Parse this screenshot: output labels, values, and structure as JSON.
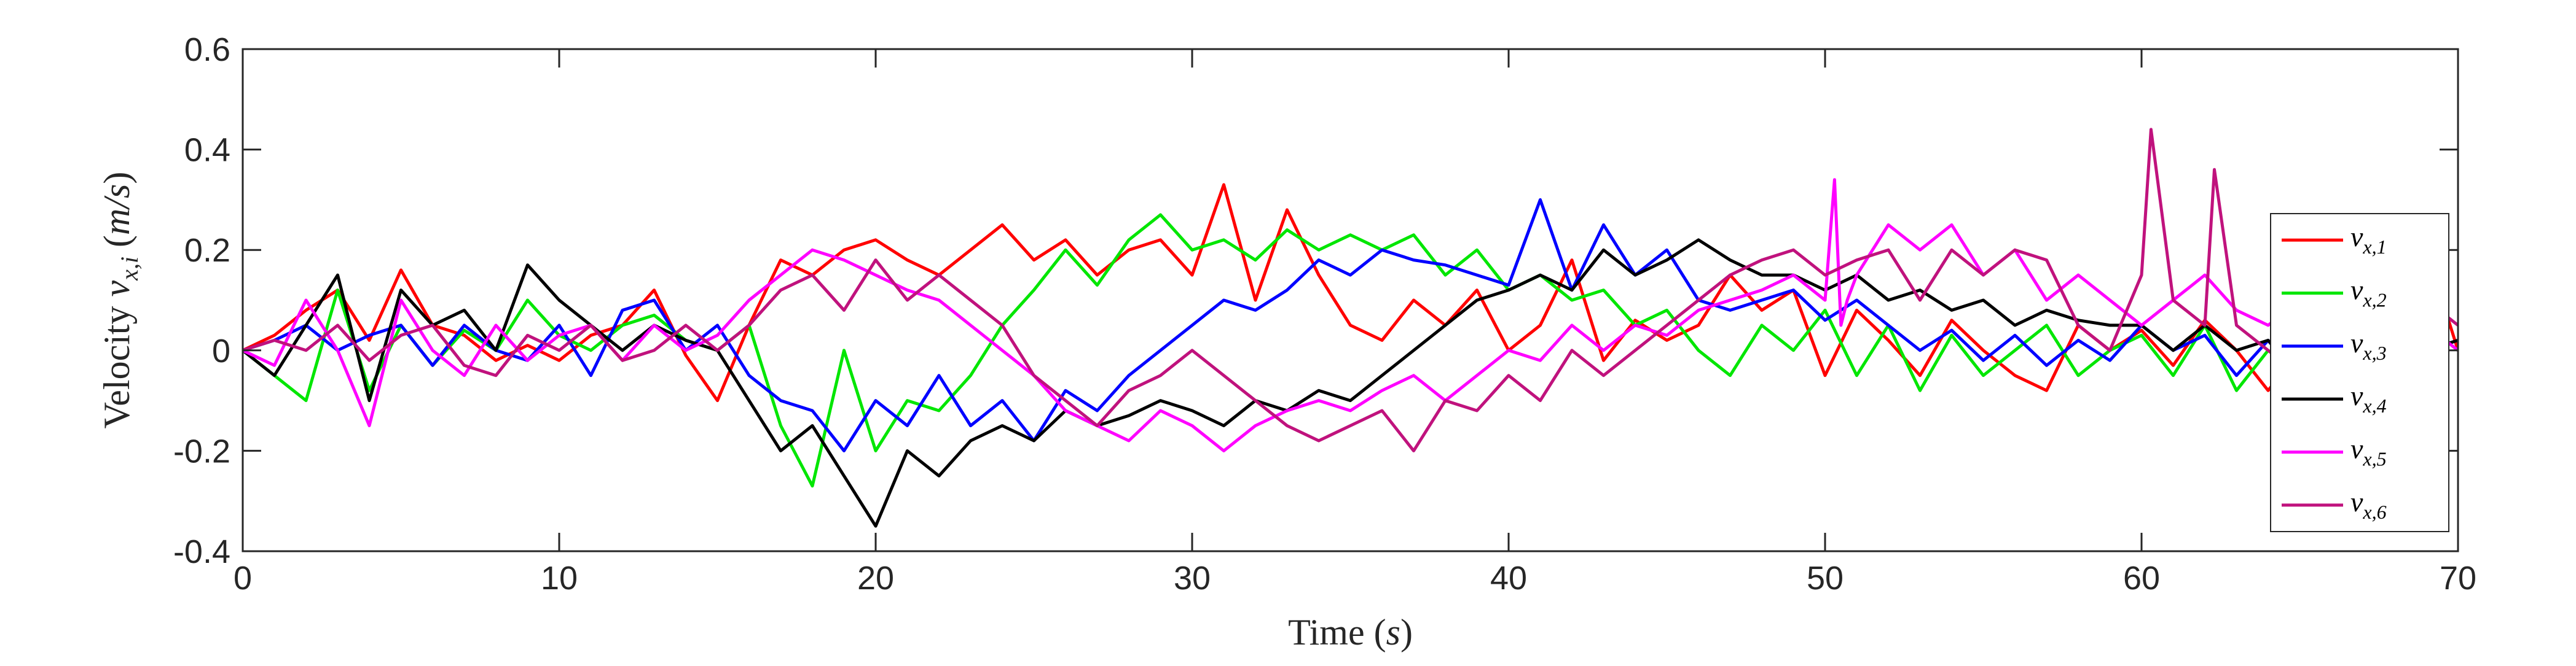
{
  "chart_data": {
    "type": "line",
    "xlabel": "Time (s)",
    "ylabel": "Velocity v_x,i (m/s)",
    "xlim": [
      0,
      70
    ],
    "ylim": [
      -0.4,
      0.6
    ],
    "xticks": [
      0,
      10,
      20,
      30,
      40,
      50,
      60,
      70
    ],
    "yticks": [
      -0.4,
      -0.2,
      0,
      0.2,
      0.4,
      0.6
    ],
    "xtick_labels": [
      "0",
      "10",
      "20",
      "30",
      "40",
      "50",
      "60",
      "70"
    ],
    "ytick_labels": [
      "-0.4",
      "-0.2",
      "0",
      "0.2",
      "0.4",
      "0.6"
    ],
    "grid": false,
    "legend_position": "right",
    "series": [
      {
        "name": "v_x,1",
        "legend_main": "v",
        "legend_sub": "x,1",
        "color": "#ff0000",
        "x": [
          0,
          1,
          2,
          3,
          4,
          5,
          6,
          7,
          8,
          9,
          10,
          11,
          12,
          13,
          14,
          15,
          16,
          17,
          18,
          19,
          20,
          21,
          22,
          23,
          24,
          25,
          26,
          27,
          28,
          29,
          30,
          31,
          32,
          33,
          34,
          35,
          36,
          37,
          38,
          39,
          40,
          41,
          42,
          43,
          44,
          45,
          46,
          47,
          48,
          49,
          50,
          51,
          52,
          53,
          54,
          55,
          56,
          57,
          58,
          59,
          60,
          61,
          62,
          63,
          64,
          65,
          66,
          67,
          68,
          69,
          70
        ],
        "y": [
          0.0,
          0.03,
          0.08,
          0.12,
          0.02,
          0.16,
          0.05,
          0.03,
          -0.02,
          0.01,
          -0.02,
          0.03,
          0.05,
          0.12,
          -0.01,
          -0.1,
          0.05,
          0.18,
          0.15,
          0.2,
          0.22,
          0.18,
          0.15,
          0.2,
          0.25,
          0.18,
          0.22,
          0.15,
          0.2,
          0.22,
          0.15,
          0.33,
          0.1,
          0.28,
          0.15,
          0.05,
          0.02,
          0.1,
          0.05,
          0.12,
          0.0,
          0.05,
          0.18,
          -0.02,
          0.06,
          0.02,
          0.05,
          0.15,
          0.08,
          0.12,
          -0.05,
          0.08,
          0.02,
          -0.05,
          0.06,
          0.0,
          -0.05,
          -0.08,
          0.05,
          0.0,
          0.04,
          -0.03,
          0.06,
          0.0,
          -0.08,
          0.0,
          -0.05,
          0.0,
          0.1,
          0.2,
          0.0
        ]
      },
      {
        "name": "v_x,2",
        "legend_main": "v",
        "legend_sub": "x,2",
        "color": "#00e600",
        "x": [
          0,
          1,
          2,
          3,
          4,
          5,
          6,
          7,
          8,
          9,
          10,
          11,
          12,
          13,
          14,
          15,
          16,
          17,
          18,
          19,
          20,
          21,
          22,
          23,
          24,
          25,
          26,
          27,
          28,
          29,
          30,
          31,
          32,
          33,
          34,
          35,
          36,
          37,
          38,
          39,
          40,
          41,
          42,
          43,
          44,
          45,
          46,
          47,
          48,
          49,
          50,
          51,
          52,
          53,
          54,
          55,
          56,
          57,
          58,
          59,
          60,
          61,
          62,
          63,
          64,
          65,
          66,
          67,
          68,
          69,
          70
        ],
        "y": [
          0.0,
          -0.05,
          -0.1,
          0.12,
          -0.08,
          0.05,
          -0.03,
          0.04,
          0.0,
          0.1,
          0.03,
          0.0,
          0.05,
          0.07,
          0.02,
          0.0,
          0.05,
          -0.15,
          -0.27,
          0.0,
          -0.2,
          -0.1,
          -0.12,
          -0.05,
          0.05,
          0.12,
          0.2,
          0.13,
          0.22,
          0.27,
          0.2,
          0.22,
          0.18,
          0.24,
          0.2,
          0.23,
          0.2,
          0.23,
          0.15,
          0.2,
          0.12,
          0.15,
          0.1,
          0.12,
          0.05,
          0.08,
          0.0,
          -0.05,
          0.05,
          0.0,
          0.08,
          -0.05,
          0.05,
          -0.08,
          0.03,
          -0.05,
          0.0,
          0.05,
          -0.05,
          0.0,
          0.03,
          -0.05,
          0.05,
          -0.08,
          0.0,
          -0.05,
          0.0,
          -0.02,
          0.0,
          0.05,
          0.0
        ]
      },
      {
        "name": "v_x,3",
        "legend_main": "v",
        "legend_sub": "x,3",
        "color": "#0000ff",
        "x": [
          0,
          1,
          2,
          3,
          4,
          5,
          6,
          7,
          8,
          9,
          10,
          11,
          12,
          13,
          14,
          15,
          16,
          17,
          18,
          19,
          20,
          21,
          22,
          23,
          24,
          25,
          26,
          27,
          28,
          29,
          30,
          31,
          32,
          33,
          34,
          35,
          36,
          37,
          38,
          39,
          40,
          41,
          42,
          43,
          44,
          45,
          46,
          47,
          48,
          49,
          50,
          51,
          52,
          53,
          54,
          55,
          56,
          57,
          58,
          59,
          60,
          61,
          62,
          63,
          64,
          65,
          66,
          67,
          68,
          69,
          70
        ],
        "y": [
          0.0,
          0.02,
          0.05,
          0.0,
          0.03,
          0.05,
          -0.03,
          0.05,
          0.0,
          -0.02,
          0.05,
          -0.05,
          0.08,
          0.1,
          0.0,
          0.05,
          -0.05,
          -0.1,
          -0.12,
          -0.2,
          -0.1,
          -0.15,
          -0.05,
          -0.15,
          -0.1,
          -0.18,
          -0.08,
          -0.12,
          -0.05,
          0.0,
          0.05,
          0.1,
          0.08,
          0.12,
          0.18,
          0.15,
          0.2,
          0.18,
          0.17,
          0.15,
          0.13,
          0.3,
          0.12,
          0.25,
          0.15,
          0.2,
          0.1,
          0.08,
          0.1,
          0.12,
          0.06,
          0.1,
          0.05,
          0.0,
          0.04,
          -0.02,
          0.03,
          -0.03,
          0.02,
          -0.02,
          0.05,
          0.0,
          0.03,
          -0.05,
          0.02,
          -0.06,
          0.0,
          0.03,
          0.05,
          0.0,
          0.02
        ]
      },
      {
        "name": "v_x,4",
        "legend_main": "v",
        "legend_sub": "x,4",
        "color": "#000000",
        "x": [
          0,
          1,
          2,
          3,
          4,
          5,
          6,
          7,
          8,
          9,
          10,
          11,
          12,
          13,
          14,
          15,
          16,
          17,
          18,
          19,
          20,
          21,
          22,
          23,
          24,
          25,
          26,
          27,
          28,
          29,
          30,
          31,
          32,
          33,
          34,
          35,
          36,
          37,
          38,
          39,
          40,
          41,
          42,
          43,
          44,
          45,
          46,
          47,
          48,
          49,
          50,
          51,
          52,
          53,
          54,
          55,
          56,
          57,
          58,
          59,
          60,
          61,
          62,
          63,
          64,
          65,
          66,
          67,
          68,
          69,
          70
        ],
        "y": [
          0.0,
          -0.05,
          0.05,
          0.15,
          -0.1,
          0.12,
          0.05,
          0.08,
          0.0,
          0.17,
          0.1,
          0.05,
          0.0,
          0.05,
          0.02,
          0.0,
          -0.1,
          -0.2,
          -0.15,
          -0.25,
          -0.35,
          -0.2,
          -0.25,
          -0.18,
          -0.15,
          -0.18,
          -0.12,
          -0.15,
          -0.13,
          -0.1,
          -0.12,
          -0.15,
          -0.1,
          -0.12,
          -0.08,
          -0.1,
          -0.05,
          0.0,
          0.05,
          0.1,
          0.12,
          0.15,
          0.12,
          0.2,
          0.15,
          0.18,
          0.22,
          0.18,
          0.15,
          0.15,
          0.12,
          0.15,
          0.1,
          0.12,
          0.08,
          0.1,
          0.05,
          0.08,
          0.06,
          0.05,
          0.05,
          0.0,
          0.05,
          0.0,
          0.02,
          -0.05,
          0.0,
          0.05,
          0.03,
          0.0,
          0.02
        ]
      },
      {
        "name": "v_x,5",
        "legend_main": "v",
        "legend_sub": "x,5",
        "color": "#ff00ff",
        "x": [
          0,
          1,
          2,
          3,
          4,
          5,
          6,
          7,
          8,
          9,
          10,
          11,
          12,
          13,
          14,
          15,
          16,
          17,
          18,
          19,
          20,
          21,
          22,
          23,
          24,
          25,
          26,
          27,
          28,
          29,
          30,
          31,
          32,
          33,
          34,
          35,
          36,
          37,
          38,
          39,
          40,
          41,
          42,
          43,
          44,
          45,
          46,
          47,
          48,
          49,
          50,
          50.3,
          50.5,
          50.7,
          51,
          52,
          53,
          54,
          55,
          56,
          57,
          58,
          59,
          60,
          61,
          62,
          63,
          64,
          65,
          66,
          67,
          68,
          69,
          70
        ],
        "y": [
          0.0,
          -0.03,
          0.1,
          0.0,
          -0.15,
          0.1,
          0.0,
          -0.05,
          0.05,
          -0.02,
          0.03,
          0.05,
          -0.02,
          0.05,
          0.0,
          0.03,
          0.1,
          0.15,
          0.2,
          0.18,
          0.15,
          0.12,
          0.1,
          0.05,
          0.0,
          -0.05,
          -0.12,
          -0.15,
          -0.18,
          -0.12,
          -0.15,
          -0.2,
          -0.15,
          -0.12,
          -0.1,
          -0.12,
          -0.08,
          -0.05,
          -0.1,
          -0.05,
          0.0,
          -0.02,
          0.05,
          0.0,
          0.05,
          0.03,
          0.08,
          0.1,
          0.12,
          0.15,
          0.1,
          0.34,
          0.05,
          0.1,
          0.15,
          0.25,
          0.2,
          0.25,
          0.15,
          0.2,
          0.1,
          0.15,
          0.1,
          0.05,
          0.1,
          0.15,
          0.08,
          0.05,
          0.1,
          0.05,
          0.0,
          0.08,
          0.05,
          0.0
        ]
      },
      {
        "name": "v_x,6",
        "legend_main": "v",
        "legend_sub": "x,6",
        "color": "#c0127d",
        "x": [
          0,
          1,
          2,
          3,
          4,
          5,
          6,
          7,
          8,
          9,
          10,
          11,
          12,
          13,
          14,
          15,
          16,
          17,
          18,
          19,
          20,
          21,
          22,
          23,
          24,
          25,
          26,
          27,
          28,
          29,
          30,
          31,
          32,
          33,
          34,
          35,
          36,
          37,
          38,
          39,
          40,
          41,
          42,
          43,
          44,
          45,
          46,
          47,
          48,
          49,
          50,
          51,
          52,
          53,
          54,
          55,
          56,
          57,
          58,
          59,
          60,
          60.3,
          61,
          62,
          62.3,
          63,
          64,
          65,
          66,
          67,
          68,
          69,
          70
        ],
        "y": [
          0.0,
          0.02,
          0.0,
          0.05,
          -0.02,
          0.03,
          0.05,
          -0.03,
          -0.05,
          0.03,
          0.0,
          0.05,
          -0.02,
          0.0,
          0.05,
          0.0,
          0.05,
          0.12,
          0.15,
          0.08,
          0.18,
          0.1,
          0.15,
          0.1,
          0.05,
          -0.05,
          -0.1,
          -0.15,
          -0.08,
          -0.05,
          0.0,
          -0.05,
          -0.1,
          -0.15,
          -0.18,
          -0.15,
          -0.12,
          -0.2,
          -0.1,
          -0.12,
          -0.05,
          -0.1,
          0.0,
          -0.05,
          0.0,
          0.05,
          0.1,
          0.15,
          0.18,
          0.2,
          0.15,
          0.18,
          0.2,
          0.1,
          0.2,
          0.15,
          0.2,
          0.18,
          0.05,
          0.0,
          0.15,
          0.44,
          0.1,
          0.05,
          0.36,
          0.05,
          0.0,
          -0.05,
          0.05,
          0.0,
          0.05,
          0.1,
          0.05
        ]
      }
    ]
  }
}
